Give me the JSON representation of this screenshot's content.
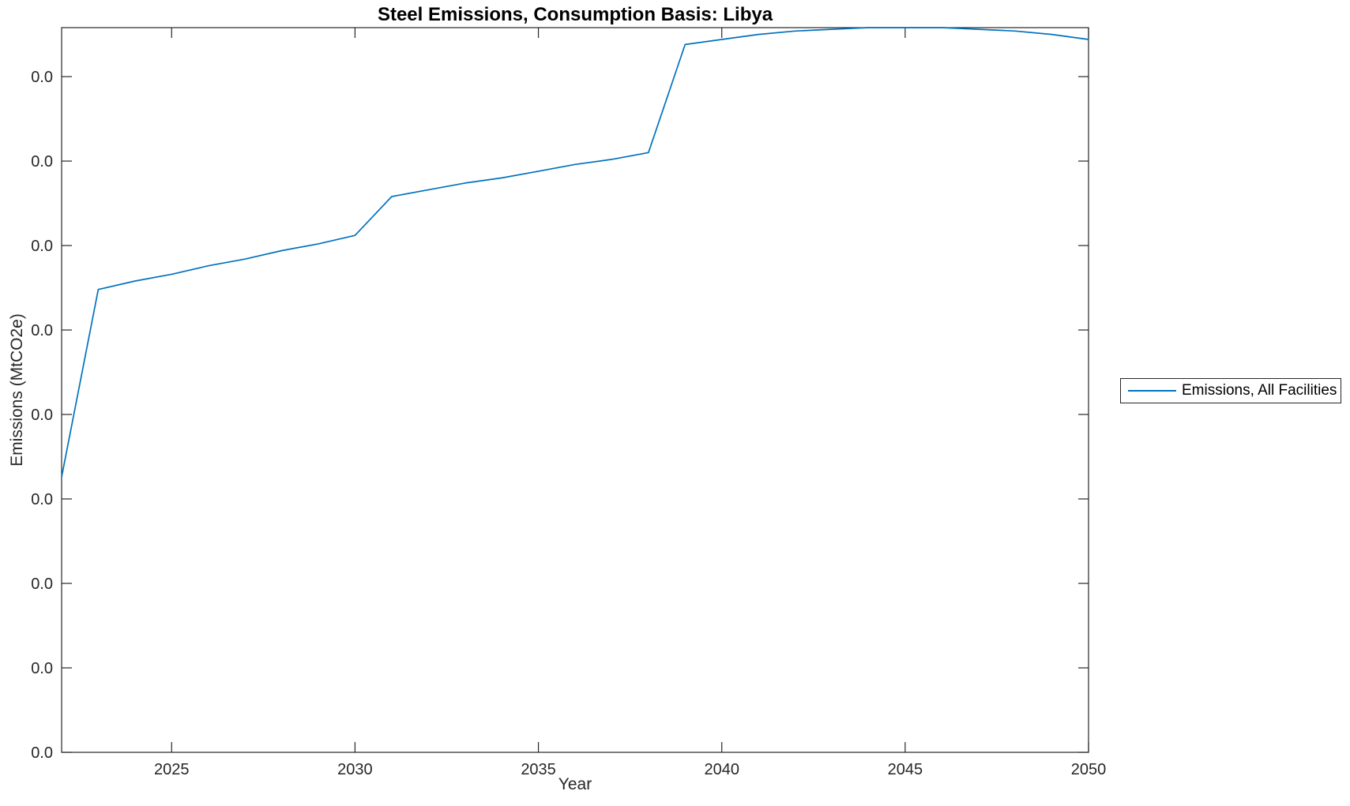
{
  "chart_data": {
    "type": "line",
    "title": "Steel Emissions, Consumption Basis: Libya",
    "xlabel": "Year",
    "ylabel": "Emissions (MtCO2e)",
    "grid": false,
    "box": true,
    "legend_position": "outside-right",
    "axis_color": "#262626",
    "line_color": "#0072BD",
    "background_color": "#ffffff",
    "xlim": [
      2022,
      2050
    ],
    "ylim": [
      0,
      0.0429
    ],
    "x_ticks": [
      2025,
      2030,
      2035,
      2040,
      2045,
      2050
    ],
    "x_tick_labels": [
      "2025",
      "2030",
      "2035",
      "2040",
      "2045",
      "2050"
    ],
    "y_ticks": [
      0,
      0.005,
      0.01,
      0.015,
      0.02,
      0.025,
      0.03,
      0.035,
      0.04
    ],
    "y_tick_labels": [
      "0.0",
      "0.0",
      "0.0",
      "0.0",
      "0.0",
      "0.0",
      "0.0",
      "0.0",
      "0.0"
    ],
    "x": [
      2022,
      2023,
      2024,
      2025,
      2026,
      2027,
      2028,
      2029,
      2030,
      2031,
      2032,
      2033,
      2034,
      2035,
      2036,
      2037,
      2038,
      2039,
      2040,
      2041,
      2042,
      2043,
      2044,
      2045,
      2046,
      2047,
      2048,
      2049,
      2050
    ],
    "series": [
      {
        "name": "Emissions, All Facilities",
        "color": "#0072BD",
        "values": [
          0.0163,
          0.0274,
          0.0279,
          0.0283,
          0.0288,
          0.0292,
          0.0297,
          0.0301,
          0.0306,
          0.0329,
          0.0333,
          0.0337,
          0.034,
          0.0344,
          0.0348,
          0.0351,
          0.0355,
          0.0419,
          0.0422,
          0.0425,
          0.0427,
          0.0428,
          0.0429,
          0.0429,
          0.0429,
          0.0428,
          0.0427,
          0.0425,
          0.0422
        ]
      }
    ]
  }
}
